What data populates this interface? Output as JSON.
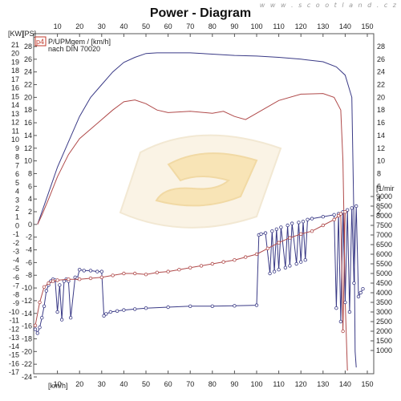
{
  "page": {
    "title": "Power - Diagram",
    "watermark": "w w w . s c o o t l a n d . c z"
  },
  "chart_data": {
    "type": "line",
    "title": "Power - Diagram",
    "x_unit_label": "[km/h]",
    "xlim": [
      0,
      150
    ],
    "x_ticks": [
      10,
      20,
      30,
      40,
      50,
      60,
      70,
      80,
      90,
      100,
      110,
      120,
      130,
      140,
      150
    ],
    "left_axis_units": [
      "[KW]",
      "[PS]"
    ],
    "left_kw_ticks": [
      21,
      20,
      19,
      18,
      17,
      16,
      15,
      14,
      13,
      12,
      11,
      10,
      9,
      8,
      7,
      6,
      5,
      4,
      3,
      2,
      1,
      0,
      -1,
      -2,
      -3,
      -4,
      -5,
      -6,
      -7,
      -8,
      -9,
      -10,
      -11,
      -12,
      -13,
      -14,
      -15,
      -16,
      -17
    ],
    "left_ps_ticks": [
      28,
      26,
      24,
      22,
      20,
      18,
      16,
      14,
      12,
      10,
      8,
      6,
      4,
      2,
      0,
      -2,
      -4,
      -6,
      -8,
      -10,
      -12,
      -14,
      -16,
      -18,
      -20,
      -22,
      -24
    ],
    "ps_lim": [
      -24,
      28
    ],
    "right_top_ticks": [
      28,
      26,
      24,
      22,
      20,
      18,
      16,
      14,
      12,
      10,
      8,
      6,
      4,
      2
    ],
    "right_rpm_label": "[1/mir",
    "right_rpm_ticks": [
      9000,
      8500,
      8000,
      7500,
      7000,
      6500,
      6000,
      5500,
      5000,
      4500,
      4000,
      3500,
      3000,
      2500,
      2000,
      1500,
      1000
    ],
    "rpm_lim": [
      1000,
      9000
    ],
    "legend": {
      "marker": "p4",
      "line1": "P/UPMgem / [km/h]",
      "line2": "nach DIN 70020"
    },
    "series": [
      {
        "key": "power_blue",
        "color": "#3a3a86",
        "axis": "ps",
        "points": [
          [
            1,
            0
          ],
          [
            3,
            2
          ],
          [
            6,
            5
          ],
          [
            10,
            9
          ],
          [
            15,
            13
          ],
          [
            20,
            17
          ],
          [
            25,
            20
          ],
          [
            30,
            22
          ],
          [
            35,
            24
          ],
          [
            40,
            25.5
          ],
          [
            45,
            26.3
          ],
          [
            50,
            26.9
          ],
          [
            55,
            27
          ],
          [
            60,
            27
          ],
          [
            70,
            27
          ],
          [
            80,
            26.8
          ],
          [
            90,
            26.6
          ],
          [
            100,
            26.5
          ],
          [
            110,
            26.3
          ],
          [
            120,
            26
          ],
          [
            130,
            25.6
          ],
          [
            136,
            24.8
          ],
          [
            140,
            23.5
          ],
          [
            143,
            20
          ],
          [
            144,
            0
          ],
          [
            144.5,
            -20
          ],
          [
            145,
            -22.5
          ]
        ]
      },
      {
        "key": "power_red",
        "color": "#b04a4a",
        "axis": "ps",
        "points": [
          [
            1,
            0
          ],
          [
            3,
            1.5
          ],
          [
            6,
            4
          ],
          [
            10,
            7.5
          ],
          [
            15,
            11
          ],
          [
            20,
            13.5
          ],
          [
            25,
            15
          ],
          [
            30,
            16.5
          ],
          [
            35,
            18
          ],
          [
            40,
            19.3
          ],
          [
            45,
            19.6
          ],
          [
            50,
            19
          ],
          [
            55,
            18
          ],
          [
            60,
            17.6
          ],
          [
            70,
            17.8
          ],
          [
            80,
            17.5
          ],
          [
            85,
            17.8
          ],
          [
            90,
            17
          ],
          [
            95,
            16.5
          ],
          [
            100,
            17.5
          ],
          [
            110,
            19.5
          ],
          [
            120,
            20.5
          ],
          [
            130,
            20.6
          ],
          [
            135,
            20
          ],
          [
            138,
            18
          ],
          [
            139,
            10
          ],
          [
            139.5,
            0
          ],
          [
            140,
            -12
          ],
          [
            141,
            -23
          ]
        ]
      },
      {
        "key": "rpm_blue",
        "color": "#3a3a86",
        "axis": "rpm",
        "marker": "circle",
        "points": [
          [
            0,
            2100
          ],
          [
            1,
            1900
          ],
          [
            2,
            2200
          ],
          [
            3,
            2700
          ],
          [
            4,
            3300
          ],
          [
            5,
            4100
          ],
          [
            6,
            4400
          ],
          [
            7,
            4600
          ],
          [
            8,
            4700
          ],
          [
            9,
            4650
          ],
          [
            10,
            3000
          ],
          [
            11,
            4400
          ],
          [
            12,
            2600
          ],
          [
            13,
            4600
          ],
          [
            14,
            4700
          ],
          [
            15,
            4600
          ],
          [
            16,
            2700
          ],
          [
            18,
            4800
          ],
          [
            19,
            4750
          ],
          [
            20,
            5200
          ],
          [
            22,
            5150
          ],
          [
            25,
            5150
          ],
          [
            28,
            5100
          ],
          [
            30,
            5100
          ],
          [
            31,
            2800
          ],
          [
            32,
            2900
          ],
          [
            34,
            3000
          ],
          [
            37,
            3050
          ],
          [
            40,
            3100
          ],
          [
            45,
            3150
          ],
          [
            50,
            3200
          ],
          [
            60,
            3250
          ],
          [
            70,
            3300
          ],
          [
            80,
            3300
          ],
          [
            90,
            3320
          ],
          [
            100,
            3350
          ],
          [
            101,
            7000
          ],
          [
            102,
            7050
          ],
          [
            104,
            7100
          ],
          [
            106,
            5000
          ],
          [
            107,
            7200
          ],
          [
            108,
            5100
          ],
          [
            109,
            7300
          ],
          [
            110,
            5200
          ],
          [
            111,
            7400
          ],
          [
            113,
            5300
          ],
          [
            114,
            7500
          ],
          [
            115,
            5400
          ],
          [
            116,
            7600
          ],
          [
            118,
            5500
          ],
          [
            119,
            7650
          ],
          [
            120,
            5600
          ],
          [
            121,
            7700
          ],
          [
            122,
            5700
          ],
          [
            123,
            7800
          ],
          [
            125,
            7850
          ],
          [
            130,
            7950
          ],
          [
            135,
            8050
          ],
          [
            136,
            3200
          ],
          [
            137,
            8100
          ],
          [
            138,
            2500
          ],
          [
            139,
            8200
          ],
          [
            140,
            3500
          ],
          [
            141,
            8300
          ],
          [
            142,
            3000
          ],
          [
            143,
            8400
          ],
          [
            144,
            4500
          ],
          [
            145,
            8500
          ],
          [
            146,
            3800
          ],
          [
            147,
            4000
          ],
          [
            148,
            4200
          ]
        ]
      },
      {
        "key": "rpm_red",
        "color": "#b04a4a",
        "axis": "rpm",
        "marker": "circle",
        "points": [
          [
            0,
            2300
          ],
          [
            2,
            3500
          ],
          [
            4,
            4300
          ],
          [
            6,
            4500
          ],
          [
            8,
            4600
          ],
          [
            10,
            4650
          ],
          [
            15,
            4700
          ],
          [
            20,
            4700
          ],
          [
            25,
            4750
          ],
          [
            30,
            4800
          ],
          [
            35,
            4900
          ],
          [
            40,
            5000
          ],
          [
            45,
            5000
          ],
          [
            50,
            4950
          ],
          [
            55,
            5050
          ],
          [
            60,
            5100
          ],
          [
            65,
            5200
          ],
          [
            70,
            5300
          ],
          [
            75,
            5400
          ],
          [
            80,
            5500
          ],
          [
            85,
            5600
          ],
          [
            90,
            5700
          ],
          [
            95,
            5850
          ],
          [
            100,
            6000
          ],
          [
            105,
            6300
          ],
          [
            110,
            6600
          ],
          [
            115,
            6850
          ],
          [
            120,
            7050
          ],
          [
            125,
            7200
          ],
          [
            130,
            7500
          ],
          [
            135,
            7800
          ],
          [
            137,
            8000
          ],
          [
            138,
            8100
          ],
          [
            139,
            2000
          ],
          [
            140,
            8200
          ]
        ]
      }
    ]
  }
}
